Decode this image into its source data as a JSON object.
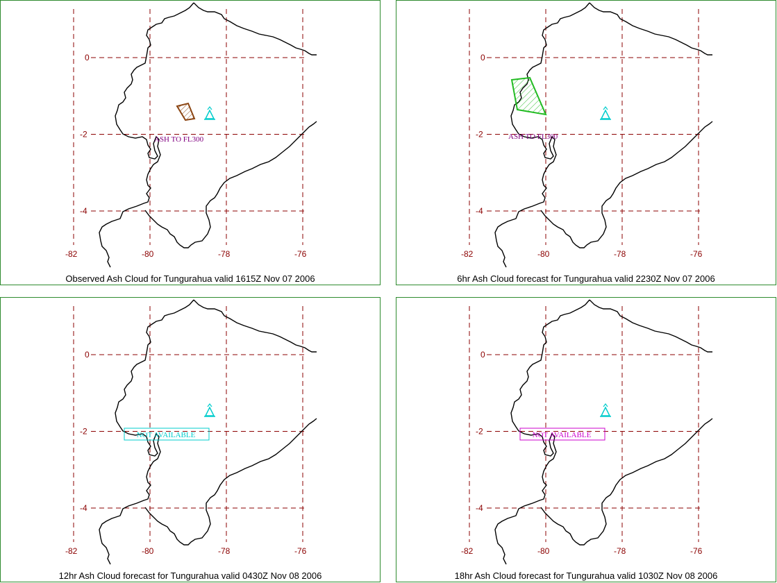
{
  "panels": [
    {
      "title": "Observed Ash Cloud for Tungurahua valid 1615Z Nov 07 2006",
      "x_ticks": [
        "-82",
        "-80",
        "-78",
        "-76"
      ],
      "y_ticks": [
        "0",
        "-2",
        "-4"
      ],
      "annotation": "ASH TO FL300",
      "annotation_color": "#800080",
      "ash_polygon": "observed",
      "ash_color": "#8b4513"
    },
    {
      "title": "6hr Ash Cloud forecast for Tungurahua valid 2230Z Nov 07 2006",
      "x_ticks": [
        "-82",
        "-80",
        "-78",
        "-76"
      ],
      "y_ticks": [
        "0",
        "-2",
        "-4"
      ],
      "annotation": "ASH TO FL300",
      "annotation_color": "#800080",
      "ash_polygon": "forecast",
      "ash_color": "#22bb22"
    },
    {
      "title": "12hr Ash Cloud forecast for Tungurahua valid 0430Z Nov 08 2006",
      "x_ticks": [
        "-82",
        "-80",
        "-78",
        "-76"
      ],
      "y_ticks": [
        "0",
        "-2",
        "-4"
      ],
      "annotation": "NOT AVAILABLE",
      "annotation_color": "#00cccc",
      "ash_polygon": "none"
    },
    {
      "title": "18hr Ash Cloud forecast for Tungurahua valid 1030Z Nov 08 2006",
      "x_ticks": [
        "-82",
        "-80",
        "-78",
        "-76"
      ],
      "y_ticks": [
        "0",
        "-2",
        "-4"
      ],
      "annotation": "NOT AVAILABLE",
      "annotation_color": "#cc00cc",
      "ash_polygon": "none"
    }
  ],
  "volcano": {
    "name_icon": "volcano-icon",
    "color": "#00cccc"
  },
  "grid_color": "#8b0000",
  "coast_color": "#000000"
}
